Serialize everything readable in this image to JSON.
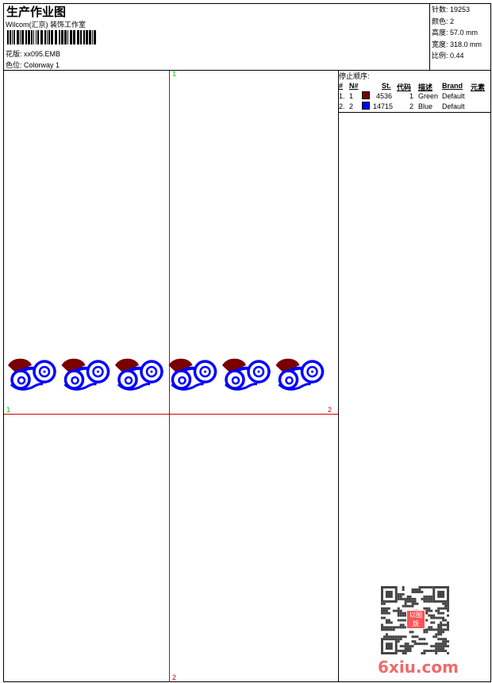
{
  "header": {
    "title": "生产作业图",
    "company": "Wilcom(汇京) 装饰工作室",
    "design_label": "花版:",
    "design_value": "xx095.EMB",
    "colorway_label": "色位:",
    "colorway_value": "Colorway 1"
  },
  "info": {
    "stitches": "针数: 19253",
    "colors": "颜色: 2",
    "height": "高度: 57.0 mm",
    "width": "宽度: 318.0 mm",
    "scale": "比例: 0.44"
  },
  "stop_sequence": {
    "title": "停止顺序:",
    "headers": [
      "#",
      "N#",
      "St.",
      "代码",
      "描述",
      "Brand",
      "元素"
    ],
    "rows": [
      {
        "idx": "1.",
        "n": "1",
        "color": "#7a0000",
        "st": "4536",
        "code": "1",
        "desc": "Green",
        "brand": "Default"
      },
      {
        "idx": "2.",
        "n": "2",
        "color": "#0000ff",
        "st": "14715",
        "code": "2",
        "desc": "Blue",
        "brand": "Default"
      }
    ]
  },
  "page_markers": {
    "top": "1",
    "bottom": "2",
    "left": "1",
    "right": "2"
  },
  "colors": {
    "grid": "#cc0000",
    "marker_green": "#00cc00",
    "marker_red": "#cc0000",
    "thread1": "#7a0000",
    "thread2": "#0000ff"
  },
  "watermark": {
    "text": "6xiu.com",
    "seal": "以图版"
  }
}
